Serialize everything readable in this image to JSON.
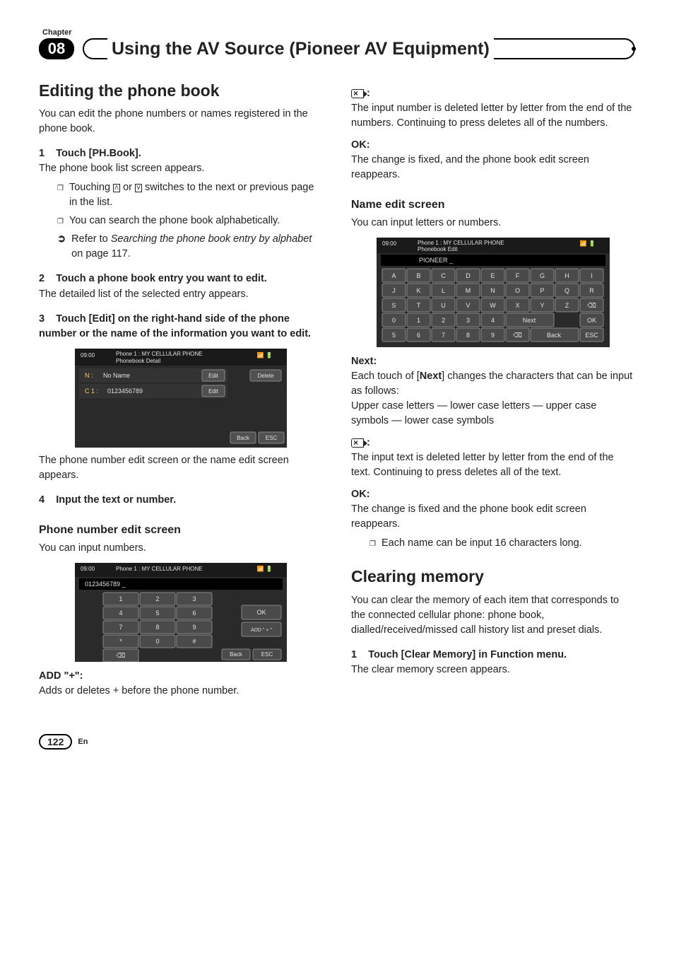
{
  "chapter_label": "Chapter",
  "chapter_number": "08",
  "section_title": "Using the AV Source (Pioneer AV Equipment)",
  "page_number": "122",
  "page_lang": "En",
  "left": {
    "h1": "Editing the phone book",
    "intro": "You can edit the phone numbers or names registered in the phone book.",
    "step1_num": "1",
    "step1_label": "Touch [PH.Book].",
    "step1_after": "The phone book list screen appears.",
    "bullet1a_pre": "Touching ",
    "bullet1a_mid": " or ",
    "bullet1a_post": " switches to the next or previous page in the list.",
    "bullet1b": "You can search the phone book alphabetically.",
    "bullet1c_pre": "Refer to ",
    "bullet1c_italic": "Searching the phone book entry by alphabet",
    "bullet1c_post": " on page 117.",
    "step2_num": "2",
    "step2_label": "Touch a phone book entry you want to edit.",
    "step2_after": "The detailed list of the selected entry appears.",
    "step3_num": "3",
    "step3_label": "Touch [Edit] on the right-hand side of the phone number or the name of the information you want to edit.",
    "step3_after": "The phone number edit screen or the name edit screen appears.",
    "step4_num": "4",
    "step4_label": "Input the text or number.",
    "h2_phone": "Phone number edit screen",
    "phone_intro": "You can input numbers.",
    "add_label": "ADD \"+\":",
    "add_text": "Adds or deletes + before the phone number.",
    "screenshot1": {
      "bg": "#2a2a2a",
      "header_bg": "#1a1a1a",
      "row_bg": "#333333",
      "btn_bg": "#505050",
      "btn_border": "#888888",
      "text": "#e0e0e0",
      "time": "09:00",
      "title": "Phone 1 : MY CELLULAR PHONE",
      "subtitle": "Phonebook Detail",
      "row_n_label": "N :",
      "row_n_value": "No Name",
      "row_n_btn": "Edit",
      "row_c_label": "C 1 :",
      "row_c_value": "0123456789",
      "row_c_btn": "Edit",
      "delete_btn": "Delete",
      "back_btn": "Back",
      "esc_btn": "ESC"
    },
    "screenshot2": {
      "bg": "#2a2a2a",
      "header_bg": "#1a1a1a",
      "input_bg": "#000000",
      "key_bg": "#4a4a4a",
      "key_border": "#888888",
      "text": "#e0e0e0",
      "time": "09:00",
      "title": "Phone 1 : MY CELLULAR PHONE",
      "input_value": "0123456789 _",
      "keys": [
        [
          "1",
          "2",
          "3"
        ],
        [
          "4",
          "5",
          "6"
        ],
        [
          "7",
          "8",
          "9"
        ],
        [
          "*",
          "0",
          "#"
        ]
      ],
      "ok_btn": "OK",
      "add_btn": "ADD \" + \"",
      "back_btn": "Back",
      "esc_btn": "ESC"
    }
  },
  "right": {
    "del1_text": "The input number is deleted letter by letter from the end of the numbers. Continuing to press deletes all of the numbers.",
    "ok1_label": "OK:",
    "ok1_text": "The change is fixed, and the phone book edit screen reappears.",
    "h2_name": "Name edit screen",
    "name_intro": "You can input letters or numbers.",
    "next_label": "Next:",
    "next_text1": "Each touch of [",
    "next_bold": "Next",
    "next_text2": "] changes the characters that can be input as follows:",
    "next_text3": "Upper case letters — lower case letters — upper case symbols — lower case symbols",
    "del2_text": "The input text is deleted letter by letter from the end of the text. Continuing to press deletes all of the text.",
    "ok2_label": "OK:",
    "ok2_text": "The change is fixed and the phone book edit screen reappears.",
    "ok2_bullet": "Each name can be input 16 characters long.",
    "h1_clear": "Clearing memory",
    "clear_intro": "You can clear the memory of each item that corresponds to the connected cellular phone: phone book, dialled/received/missed call history list and preset dials.",
    "clear_step1_num": "1",
    "clear_step1_label": "Touch [Clear Memory] in Function menu.",
    "clear_step1_after": "The clear memory screen appears.",
    "screenshot3": {
      "bg": "#2a2a2a",
      "header_bg": "#1a1a1a",
      "input_bg": "#000000",
      "key_bg": "#4a4a4a",
      "key_border": "#888888",
      "text": "#e0e0e0",
      "time": "09:00",
      "title": "Phone 1 : MY CELLULAR PHONE",
      "subtitle": "Phonebook Edit",
      "input_value": "PIONEER _",
      "rows": [
        [
          "A",
          "B",
          "C",
          "D",
          "E",
          "F",
          "G",
          "H",
          "I"
        ],
        [
          "J",
          "K",
          "L",
          "M",
          "N",
          "O",
          "P",
          "Q",
          "R"
        ],
        [
          "S",
          "T",
          "U",
          "V",
          "W",
          "X",
          "Y",
          "Z",
          "⌫"
        ],
        [
          "0",
          "1",
          "2",
          "3",
          "4",
          "Next",
          "",
          "",
          "OK"
        ],
        [
          "5",
          "6",
          "7",
          "8",
          "9",
          "⌫",
          "Back",
          "",
          "ESC"
        ]
      ]
    }
  }
}
